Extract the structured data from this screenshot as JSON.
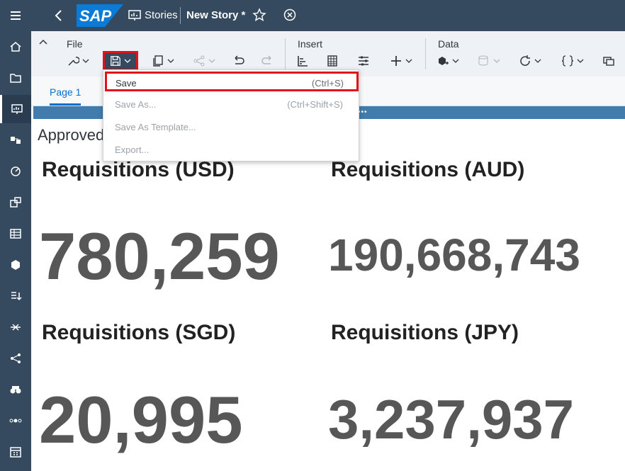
{
  "shell": {
    "logo_text": "SAP",
    "breadcrumb": "Stories",
    "story_title": "New Story",
    "unsaved_marker": "*"
  },
  "toolbar": {
    "groups": [
      {
        "label": "File"
      },
      {
        "label": "Insert"
      },
      {
        "label": "Data"
      }
    ]
  },
  "file_menu": {
    "items": [
      {
        "label": "Save",
        "shortcut": "(Ctrl+S)",
        "enabled": true
      },
      {
        "label": "Save As...",
        "shortcut": "(Ctrl+Shift+S)",
        "enabled": false
      },
      {
        "label": "Save As Template...",
        "shortcut": "",
        "enabled": false
      },
      {
        "label": "Export...",
        "shortcut": "",
        "enabled": false
      }
    ]
  },
  "pages": [
    {
      "label": "Page 1"
    }
  ],
  "canvas": {
    "header_text": "Approved",
    "tiles": [
      {
        "title": "Requisitions (USD)",
        "value": "780,259"
      },
      {
        "title": "Requisitions (AUD)",
        "value": "190,668,743"
      },
      {
        "title": "Requisitions (SGD)",
        "value": "20,995"
      },
      {
        "title": "Requisitions (JPY)",
        "value": "3,237,937"
      }
    ]
  },
  "colors": {
    "shell_bg": "#354a5f",
    "toolbar_bg": "#eef1f5",
    "highlight": "#e0131b",
    "canvas_strip": "#427cac",
    "accent": "#0a6ed1"
  }
}
